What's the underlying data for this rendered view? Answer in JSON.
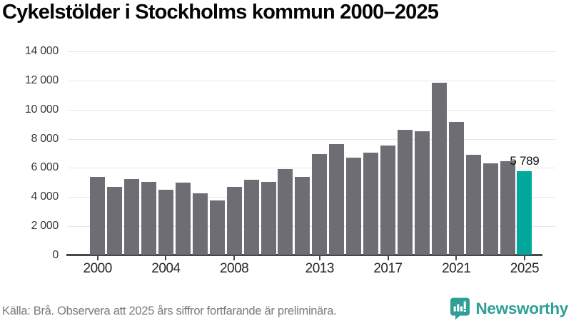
{
  "title": "Cykelstölder i Stockholms kommun 2000–2025",
  "source_note": "Källa: Brå. Observera att 2025 års siffror fortfarande är preliminära.",
  "branding": {
    "logo_text": "Newsworthy",
    "logo_icon": "bar-chart-speech-bubble-icon",
    "logo_color": "#2f9f95"
  },
  "colors": {
    "bar": "#6e6d73",
    "highlight_bar": "#00a79b",
    "gridline": "#e5e5e5",
    "axis": "#47474c"
  },
  "chart_data": {
    "type": "bar",
    "title": "Cykelstölder i Stockholms kommun 2000–2025",
    "categories": [
      "2000",
      "2001",
      "2002",
      "2003",
      "2004",
      "2005",
      "2006",
      "2007",
      "2008",
      "2009",
      "2010",
      "2011",
      "2012",
      "2013",
      "2014",
      "2015",
      "2016",
      "2017",
      "2018",
      "2019",
      "2020",
      "2021",
      "2022",
      "2023",
      "2024",
      "2025"
    ],
    "values": [
      5400,
      4700,
      5250,
      5050,
      4500,
      5000,
      4250,
      3750,
      4700,
      5200,
      5050,
      5900,
      5400,
      6950,
      7650,
      6700,
      7050,
      7550,
      8600,
      8500,
      11850,
      9150,
      6900,
      6300,
      6450,
      5789
    ],
    "highlight_index": 25,
    "data_label": {
      "index": 25,
      "text": "5 789"
    },
    "xlabel": "",
    "ylabel": "",
    "ylim": [
      0,
      14000
    ],
    "y_tick_step": 2000,
    "y_tick_labels": [
      "0",
      "2 000",
      "4 000",
      "6 000",
      "8 000",
      "10 000",
      "12 000",
      "14 000"
    ],
    "x_tick_labels": [
      "2000",
      "2004",
      "2008",
      "2013",
      "2017",
      "2021",
      "2025"
    ],
    "grid": "horizontal",
    "legend": "none"
  }
}
